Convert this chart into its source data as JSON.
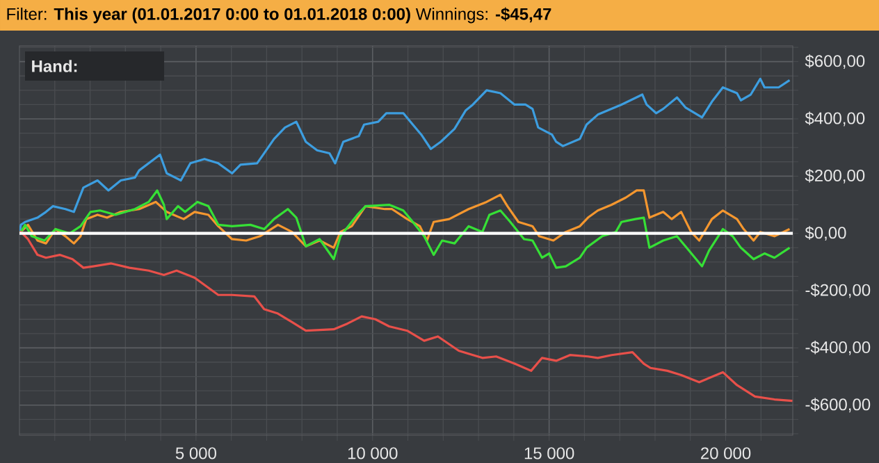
{
  "chart_data": {
    "type": "line",
    "title": "Filter: **This year (01.01.2017 0:00 to 01.01.2018 0:00)**  Winnings: **-$45,47**",
    "annotations": [
      "Hand:"
    ],
    "xlim": [
      0,
      21900
    ],
    "ylim": [
      -705,
      655
    ],
    "xticks": [
      {
        "value": 1000,
        "label": null
      },
      {
        "value": 2000,
        "label": null
      },
      {
        "value": 3000,
        "label": null
      },
      {
        "value": 4000,
        "label": null
      },
      {
        "value": 5000,
        "label": "5 000"
      },
      {
        "value": 6000,
        "label": null
      },
      {
        "value": 7000,
        "label": null
      },
      {
        "value": 8000,
        "label": null
      },
      {
        "value": 9000,
        "label": null
      },
      {
        "value": 10000,
        "label": "10 000"
      },
      {
        "value": 11000,
        "label": null
      },
      {
        "value": 12000,
        "label": null
      },
      {
        "value": 13000,
        "label": null
      },
      {
        "value": 14000,
        "label": null
      },
      {
        "value": 15000,
        "label": "15 000"
      },
      {
        "value": 16000,
        "label": null
      },
      {
        "value": 17000,
        "label": null
      },
      {
        "value": 18000,
        "label": null
      },
      {
        "value": 19000,
        "label": null
      },
      {
        "value": 20000,
        "label": "20 000"
      },
      {
        "value": 21000,
        "label": null
      }
    ],
    "yticks": [
      {
        "value": -700,
        "label": null
      },
      {
        "value": -650,
        "label": null
      },
      {
        "value": -600,
        "label": "-$600,00"
      },
      {
        "value": -550,
        "label": null
      },
      {
        "value": -500,
        "label": null
      },
      {
        "value": -450,
        "label": null
      },
      {
        "value": -400,
        "label": "-$400,00"
      },
      {
        "value": -350,
        "label": null
      },
      {
        "value": -300,
        "label": null
      },
      {
        "value": -250,
        "label": null
      },
      {
        "value": -200,
        "label": "-$200,00"
      },
      {
        "value": -150,
        "label": null
      },
      {
        "value": -100,
        "label": null
      },
      {
        "value": -50,
        "label": null
      },
      {
        "value": 0,
        "label": "$0,00"
      },
      {
        "value": 50,
        "label": null
      },
      {
        "value": 100,
        "label": null
      },
      {
        "value": 150,
        "label": null
      },
      {
        "value": 200,
        "label": "$200,00"
      },
      {
        "value": 250,
        "label": null
      },
      {
        "value": 300,
        "label": null
      },
      {
        "value": 350,
        "label": null
      },
      {
        "value": 400,
        "label": "$400,00"
      },
      {
        "value": 450,
        "label": null
      },
      {
        "value": 500,
        "label": null
      },
      {
        "value": 550,
        "label": null
      },
      {
        "value": 600,
        "label": "$600,00"
      },
      {
        "value": 650,
        "label": null
      }
    ],
    "grid": true,
    "ref_lines": [
      {
        "axis": "y",
        "value": 0,
        "color": "#ffffff"
      }
    ],
    "series": [
      {
        "color": "#3d9ee0",
        "x": [
          0,
          40,
          160,
          510,
          750,
          950,
          1300,
          1540,
          1810,
          2210,
          2520,
          2870,
          3270,
          3390,
          3980,
          4170,
          4570,
          4840,
          5240,
          5630,
          6020,
          6260,
          6730,
          6930,
          7210,
          7520,
          7840,
          8110,
          8430,
          8780,
          8940,
          9170,
          9610,
          9760,
          10160,
          10390,
          10870,
          11140,
          11380,
          11650,
          11930,
          12320,
          12640,
          12840,
          13230,
          13620,
          14020,
          14330,
          14530,
          14690,
          15080,
          15200,
          15390,
          15870,
          16060,
          16380,
          17050,
          17640,
          17760,
          18030,
          18230,
          18620,
          18860,
          19330,
          19610,
          19920,
          20320,
          20430,
          20710,
          20980,
          21100,
          21500,
          21810
        ],
        "values": [
          0,
          30,
          40,
          55,
          75,
          95,
          85,
          75,
          160,
          185,
          150,
          185,
          195,
          220,
          275,
          210,
          185,
          245,
          260,
          245,
          210,
          240,
          245,
          280,
          330,
          370,
          390,
          320,
          290,
          280,
          245,
          320,
          340,
          380,
          390,
          420,
          420,
          380,
          345,
          295,
          320,
          365,
          430,
          450,
          500,
          490,
          450,
          450,
          435,
          370,
          345,
          320,
          305,
          330,
          380,
          415,
          450,
          485,
          450,
          420,
          435,
          475,
          440,
          405,
          460,
          510,
          490,
          465,
          485,
          540,
          510,
          510,
          535
        ]
      },
      {
        "color": "#f5972f",
        "x": [
          0,
          40,
          240,
          510,
          750,
          1020,
          1300,
          1540,
          1730,
          1890,
          2210,
          2480,
          2870,
          3390,
          3860,
          4170,
          4650,
          4960,
          5350,
          5630,
          6020,
          6420,
          6810,
          7320,
          7720,
          8110,
          8500,
          8900,
          9090,
          9410,
          9800,
          10350,
          10550,
          10980,
          11340,
          11540,
          11730,
          12170,
          12720,
          13230,
          13620,
          13820,
          14130,
          14530,
          14720,
          15120,
          15470,
          15870,
          16100,
          16380,
          16770,
          17170,
          17480,
          17680,
          17840,
          18230,
          18470,
          18740,
          19020,
          19250,
          19610,
          19920,
          20320,
          20510,
          20790,
          20980,
          21380,
          21810
        ],
        "values": [
          0,
          5,
          30,
          -25,
          -35,
          15,
          -10,
          -35,
          -10,
          50,
          65,
          55,
          75,
          85,
          110,
          75,
          50,
          75,
          65,
          25,
          -20,
          -25,
          -10,
          30,
          5,
          -45,
          -25,
          -50,
          5,
          25,
          95,
          85,
          85,
          50,
          25,
          -25,
          40,
          50,
          85,
          110,
          135,
          95,
          40,
          25,
          -10,
          -25,
          5,
          25,
          55,
          80,
          100,
          125,
          150,
          150,
          55,
          75,
          50,
          75,
          5,
          -25,
          50,
          80,
          50,
          15,
          -25,
          5,
          -10,
          15
        ]
      },
      {
        "color": "#36e036",
        "x": [
          0,
          40,
          160,
          350,
          710,
          1020,
          1420,
          1730,
          2010,
          2280,
          2720,
          3270,
          3660,
          3900,
          4090,
          4170,
          4490,
          4690,
          5040,
          5350,
          5630,
          6020,
          6540,
          6930,
          7210,
          7600,
          7840,
          8110,
          8500,
          8900,
          9090,
          9570,
          9800,
          10470,
          10870,
          11140,
          11460,
          11730,
          11970,
          12320,
          12720,
          13110,
          13310,
          13620,
          13900,
          14290,
          14530,
          14800,
          15000,
          15200,
          15470,
          15870,
          16060,
          16500,
          16890,
          17050,
          17440,
          17680,
          17840,
          18230,
          18620,
          18860,
          19330,
          19530,
          19920,
          20200,
          20430,
          20790,
          21100,
          21380,
          21810
        ],
        "values": [
          0,
          5,
          30,
          -10,
          -25,
          15,
          0,
          25,
          75,
          80,
          65,
          85,
          110,
          150,
          100,
          50,
          95,
          75,
          110,
          95,
          30,
          25,
          30,
          15,
          50,
          85,
          55,
          -45,
          -20,
          -90,
          -10,
          65,
          95,
          100,
          80,
          40,
          -10,
          -75,
          -25,
          -35,
          25,
          5,
          65,
          80,
          40,
          -20,
          -25,
          -85,
          -70,
          -120,
          -115,
          -85,
          -50,
          -10,
          5,
          40,
          50,
          55,
          -50,
          -25,
          -10,
          -45,
          -115,
          -60,
          15,
          -10,
          -50,
          -90,
          -70,
          -85,
          -50
        ]
      },
      {
        "color": "#e8504a",
        "x": [
          0,
          40,
          240,
          510,
          750,
          1140,
          1500,
          1810,
          2090,
          2600,
          3110,
          3660,
          4090,
          4450,
          4960,
          5630,
          6020,
          6650,
          6930,
          7320,
          7720,
          8110,
          8900,
          9290,
          9690,
          10080,
          10470,
          10980,
          11460,
          11850,
          12440,
          13110,
          13500,
          14020,
          14490,
          14800,
          15200,
          15590,
          16100,
          16380,
          16770,
          17360,
          17680,
          17870,
          18350,
          18740,
          19250,
          19920,
          20320,
          20830,
          21380,
          21890
        ],
        "values": [
          0,
          5,
          -20,
          -75,
          -85,
          -75,
          -90,
          -120,
          -115,
          -105,
          -120,
          -130,
          -145,
          -130,
          -155,
          -215,
          -215,
          -220,
          -265,
          -280,
          -310,
          -340,
          -335,
          -315,
          -290,
          -300,
          -325,
          -340,
          -375,
          -360,
          -410,
          -435,
          -430,
          -455,
          -480,
          -435,
          -445,
          -425,
          -430,
          -435,
          -425,
          -415,
          -455,
          -470,
          -480,
          -495,
          -520,
          -485,
          -530,
          -570,
          -580,
          -585
        ]
      }
    ]
  }
}
